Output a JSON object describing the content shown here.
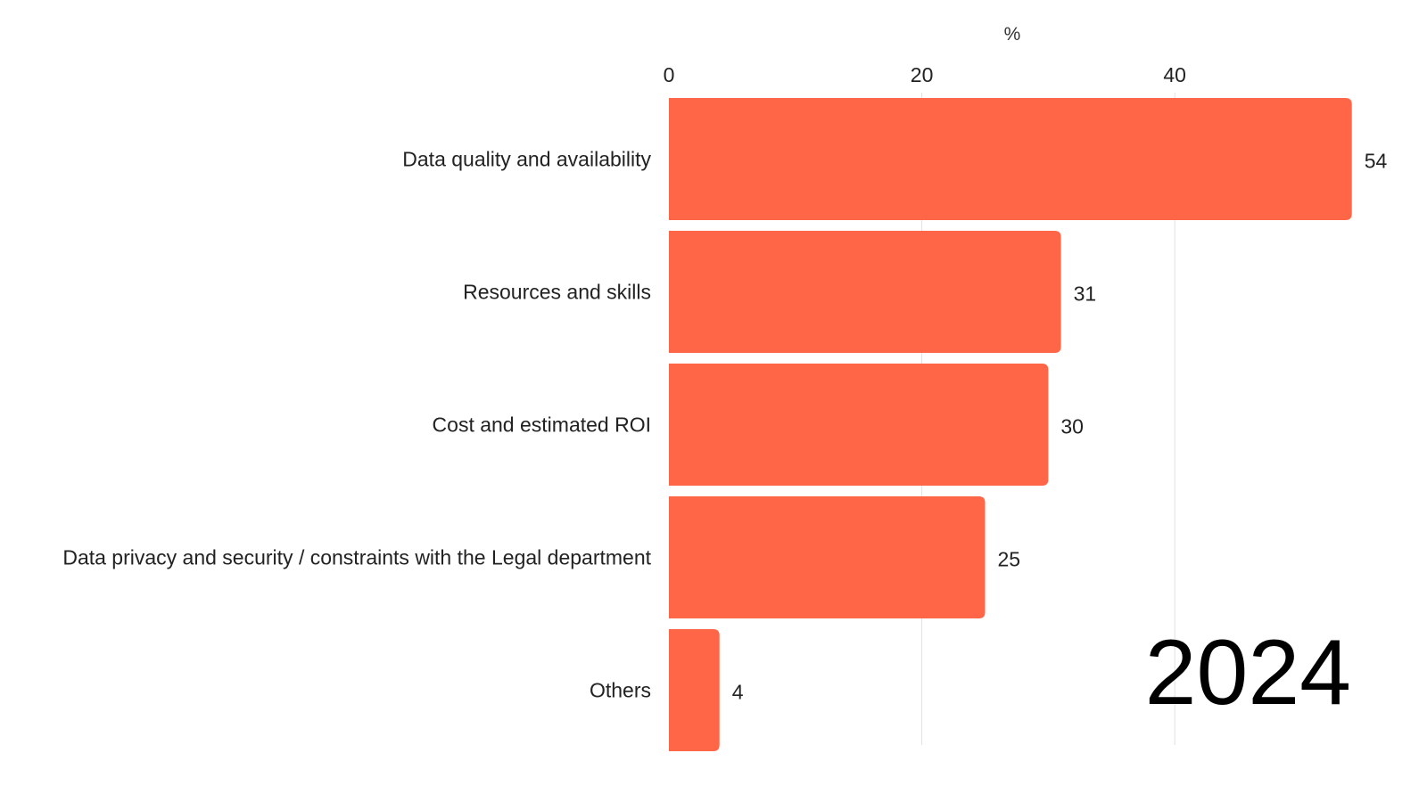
{
  "chart_data": {
    "type": "bar",
    "orientation": "horizontal",
    "categories": [
      "Data quality and availability",
      "Resources and skills",
      "Cost and estimated ROI",
      "Data privacy and security / constraints with the Legal department",
      "Others"
    ],
    "values": [
      54,
      31,
      30,
      25,
      4
    ],
    "value_labels": [
      "54",
      "31",
      "30",
      "25",
      "4"
    ],
    "unit": "%",
    "x_ticks": [
      0,
      20,
      40
    ],
    "x_tick_labels": [
      "0",
      "20",
      "40"
    ],
    "xlim": [
      0,
      57.6
    ],
    "grid": "vertical",
    "axis_position": "top",
    "year": "2024",
    "title": "",
    "xlabel": "",
    "ylabel": "",
    "colors": {
      "bar": "#FF6648",
      "grid": "#e2e2e2",
      "text": "#222222"
    }
  }
}
